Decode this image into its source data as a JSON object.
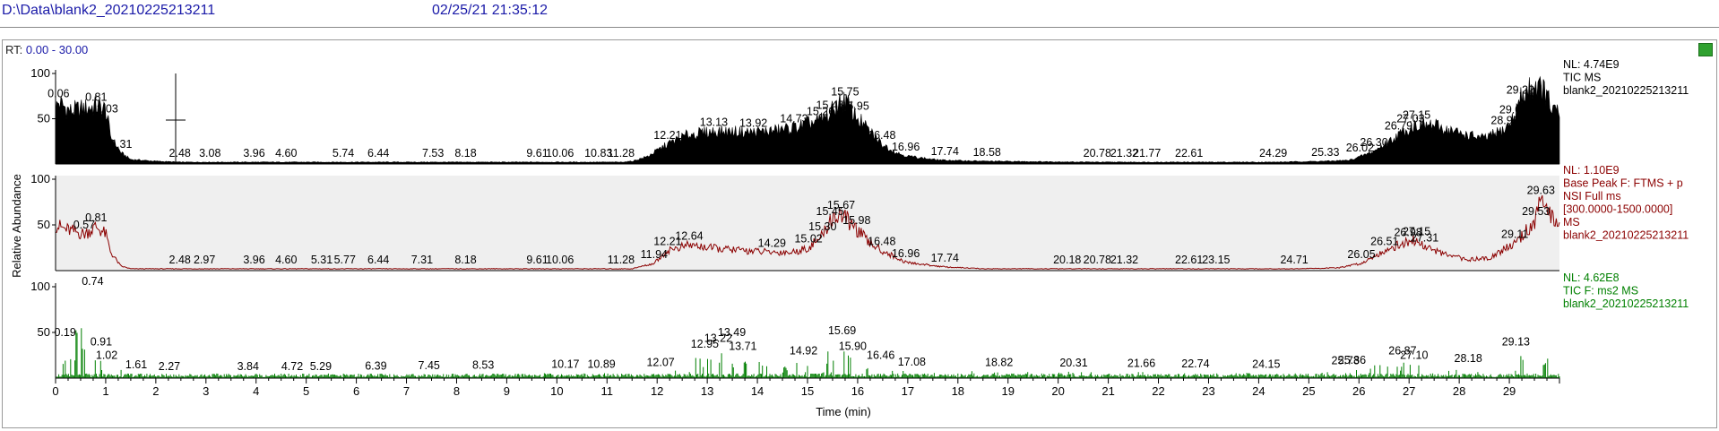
{
  "header": {
    "path": "D:\\Data\\blank2_20210225213211",
    "datetime": "02/25/21 21:35:12"
  },
  "rt_label": "RT:",
  "rt_range": "0.00 - 30.00",
  "chart_data": {
    "type": "line",
    "xlabel": "Time (min)",
    "ylabel": "Relative Abundance",
    "xlim": [
      0,
      30
    ],
    "x_ticks": [
      0,
      1,
      2,
      3,
      4,
      5,
      6,
      7,
      8,
      9,
      10,
      11,
      12,
      13,
      14,
      15,
      16,
      17,
      18,
      19,
      20,
      21,
      22,
      23,
      24,
      25,
      26,
      27,
      28,
      29
    ],
    "panels": [
      {
        "name": "tic-ms",
        "kind": "area",
        "color": "#000000",
        "fill": "#000000",
        "background": "#ffffff",
        "ylim": [
          0,
          100
        ],
        "y_ticks": [
          50,
          100
        ],
        "info": [
          "NL: 4.74E9",
          "TIC  MS",
          "blank2_20210225213211"
        ],
        "info_color": "#000000",
        "profile": [
          [
            0,
            60
          ],
          [
            0.06,
            68
          ],
          [
            0.3,
            58
          ],
          [
            0.81,
            64
          ],
          [
            1.0,
            60
          ],
          [
            1.1,
            30
          ],
          [
            1.31,
            12
          ],
          [
            1.5,
            5
          ],
          [
            2.0,
            3
          ],
          [
            2.48,
            2
          ],
          [
            3.08,
            2
          ],
          [
            5,
            2
          ],
          [
            8,
            2
          ],
          [
            11.28,
            2
          ],
          [
            11.5,
            3
          ],
          [
            11.8,
            8
          ],
          [
            12.21,
            22
          ],
          [
            12.6,
            32
          ],
          [
            13.13,
            36
          ],
          [
            13.92,
            35
          ],
          [
            14.4,
            37
          ],
          [
            14.73,
            40
          ],
          [
            15.0,
            44
          ],
          [
            15.26,
            48
          ],
          [
            15.45,
            55
          ],
          [
            15.6,
            66
          ],
          [
            15.75,
            70
          ],
          [
            15.95,
            54
          ],
          [
            16.2,
            38
          ],
          [
            16.48,
            22
          ],
          [
            16.8,
            12
          ],
          [
            16.96,
            9
          ],
          [
            17.5,
            5
          ],
          [
            17.74,
            4
          ],
          [
            18.58,
            3
          ],
          [
            20.78,
            2
          ],
          [
            21.32,
            2
          ],
          [
            22.61,
            2
          ],
          [
            24.29,
            2
          ],
          [
            25.33,
            3
          ],
          [
            25.8,
            4
          ],
          [
            26.02,
            8
          ],
          [
            26.3,
            14
          ],
          [
            26.79,
            32
          ],
          [
            27.03,
            40
          ],
          [
            27.15,
            44
          ],
          [
            27.5,
            42
          ],
          [
            28.0,
            34
          ],
          [
            28.5,
            28
          ],
          [
            28.91,
            38
          ],
          [
            29.08,
            50
          ],
          [
            29.22,
            72
          ],
          [
            29.5,
            88
          ],
          [
            29.7,
            80
          ],
          [
            29.85,
            60
          ],
          [
            29.98,
            55
          ]
        ],
        "peaks": [
          [
            0.06,
            "0.06"
          ],
          [
            0.81,
            "0.81"
          ],
          [
            1.03,
            "1.03"
          ],
          [
            1.31,
            "1.31"
          ],
          [
            2.48,
            "2.48"
          ],
          [
            3.08,
            "3.08"
          ],
          [
            3.96,
            "3.96"
          ],
          [
            4.6,
            "4.60"
          ],
          [
            5.74,
            "5.74"
          ],
          [
            6.44,
            "6.44"
          ],
          [
            7.53,
            "7.53"
          ],
          [
            8.18,
            "8.18"
          ],
          [
            9.61,
            "9.61"
          ],
          [
            10.06,
            "10.06"
          ],
          [
            10.83,
            "10.83"
          ],
          [
            11.28,
            "11.28"
          ],
          [
            12.21,
            "12.21"
          ],
          [
            13.13,
            "13.13"
          ],
          [
            13.92,
            "13.92"
          ],
          [
            14.73,
            "14.73"
          ],
          [
            15.26,
            "15.26"
          ],
          [
            15.45,
            "15.45"
          ],
          [
            15.75,
            "15.75"
          ],
          [
            15.95,
            "15.95"
          ],
          [
            16.48,
            "16.48"
          ],
          [
            16.96,
            "16.96"
          ],
          [
            17.74,
            "17.74"
          ],
          [
            18.58,
            "18.58"
          ],
          [
            20.78,
            "20.78"
          ],
          [
            21.32,
            "21.32"
          ],
          [
            21.77,
            "21.77"
          ],
          [
            22.61,
            "22.61"
          ],
          [
            24.29,
            "24.29"
          ],
          [
            25.33,
            "25.33"
          ],
          [
            26.02,
            "26.02"
          ],
          [
            26.3,
            "26.30"
          ],
          [
            26.79,
            "26.79"
          ],
          [
            27.03,
            "27.03"
          ],
          [
            27.15,
            "27.15"
          ],
          [
            28.91,
            "28.91"
          ],
          [
            29.08,
            "29.08"
          ],
          [
            29.22,
            "29.22"
          ]
        ]
      },
      {
        "name": "base-peak-ftms",
        "kind": "line",
        "color": "#8b0000",
        "background": "#efefef",
        "ylim": [
          0,
          100
        ],
        "y_ticks": [
          50,
          100
        ],
        "info": [
          "NL: 1.10E9",
          "Base Peak F: FTMS + p",
          "NSI Full ms",
          "[300.0000-1500.0000]",
          "MS",
          "blank2_20210225213211"
        ],
        "info_color": "#8b0000",
        "profile": [
          [
            0,
            50
          ],
          [
            0.2,
            45
          ],
          [
            0.57,
            40
          ],
          [
            0.81,
            48
          ],
          [
            1.0,
            40
          ],
          [
            1.1,
            20
          ],
          [
            1.3,
            5
          ],
          [
            1.5,
            2
          ],
          [
            2.48,
            2
          ],
          [
            11.5,
            2
          ],
          [
            11.94,
            8
          ],
          [
            12.21,
            22
          ],
          [
            12.64,
            28
          ],
          [
            13.2,
            24
          ],
          [
            14.29,
            20
          ],
          [
            14.7,
            20
          ],
          [
            15.02,
            25
          ],
          [
            15.3,
            38
          ],
          [
            15.45,
            55
          ],
          [
            15.67,
            62
          ],
          [
            15.98,
            45
          ],
          [
            16.2,
            32
          ],
          [
            16.48,
            22
          ],
          [
            16.96,
            9
          ],
          [
            17.74,
            4
          ],
          [
            18.5,
            2
          ],
          [
            20.18,
            2
          ],
          [
            24.71,
            2
          ],
          [
            25.6,
            3
          ],
          [
            26.05,
            8
          ],
          [
            26.51,
            22
          ],
          [
            26.98,
            32
          ],
          [
            27.15,
            33
          ],
          [
            27.31,
            26
          ],
          [
            27.8,
            16
          ],
          [
            28.2,
            12
          ],
          [
            28.6,
            14
          ],
          [
            29.11,
            30
          ],
          [
            29.53,
            55
          ],
          [
            29.63,
            78
          ],
          [
            29.8,
            60
          ],
          [
            29.98,
            55
          ]
        ],
        "peaks": [
          [
            0.57,
            "0.57"
          ],
          [
            0.81,
            "0.81"
          ],
          [
            2.48,
            "2.48"
          ],
          [
            2.97,
            "2.97"
          ],
          [
            3.96,
            "3.96"
          ],
          [
            4.6,
            "4.60"
          ],
          [
            5.31,
            "5.31"
          ],
          [
            5.77,
            "5.77"
          ],
          [
            6.44,
            "6.44"
          ],
          [
            7.31,
            "7.31"
          ],
          [
            8.18,
            "8.18"
          ],
          [
            9.61,
            "9.61"
          ],
          [
            10.06,
            "10.06"
          ],
          [
            11.28,
            "11.28"
          ],
          [
            11.94,
            "11.94"
          ],
          [
            12.21,
            "12.21"
          ],
          [
            12.64,
            "12.64"
          ],
          [
            14.29,
            "14.29"
          ],
          [
            15.02,
            "15.02"
          ],
          [
            15.3,
            "15.30"
          ],
          [
            15.45,
            "15.45"
          ],
          [
            15.67,
            "15.67"
          ],
          [
            15.98,
            "15.98"
          ],
          [
            16.48,
            "16.48"
          ],
          [
            16.96,
            "16.96"
          ],
          [
            17.74,
            "17.74"
          ],
          [
            20.18,
            "20.18"
          ],
          [
            20.78,
            "20.78"
          ],
          [
            21.32,
            "21.32"
          ],
          [
            22.61,
            "22.61"
          ],
          [
            23.15,
            "23.15"
          ],
          [
            24.71,
            "24.71"
          ],
          [
            26.05,
            "26.05"
          ],
          [
            26.51,
            "26.51"
          ],
          [
            26.98,
            "26.98"
          ],
          [
            27.15,
            "27.15"
          ],
          [
            27.31,
            "27.31"
          ],
          [
            29.11,
            "29.11"
          ],
          [
            29.53,
            "29.53"
          ],
          [
            29.63,
            "29.63"
          ]
        ]
      },
      {
        "name": "tic-ms2",
        "kind": "spikes",
        "color": "#007f00",
        "background": "#ffffff",
        "ylim": [
          0,
          100
        ],
        "y_ticks": [
          50,
          100
        ],
        "info": [
          "NL: 4.62E8",
          "TIC F: ms2  MS",
          "blank2_20210225213211"
        ],
        "info_color": "#008000",
        "profile": [
          [
            0,
            30
          ],
          [
            0.19,
            40
          ],
          [
            0.74,
            100
          ],
          [
            0.91,
            30
          ],
          [
            1.02,
            15
          ],
          [
            1.61,
            5
          ],
          [
            2.27,
            3
          ],
          [
            5,
            3
          ],
          [
            12,
            6
          ],
          [
            13.49,
            40
          ],
          [
            13.71,
            25
          ],
          [
            14.92,
            20
          ],
          [
            15.69,
            42
          ],
          [
            15.9,
            25
          ],
          [
            16.46,
            15
          ],
          [
            17.08,
            8
          ],
          [
            25,
            5
          ],
          [
            25.86,
            10
          ],
          [
            26.87,
            20
          ],
          [
            27.1,
            15
          ],
          [
            28.18,
            12
          ],
          [
            29.13,
            30
          ],
          [
            29.98,
            20
          ]
        ],
        "peaks": [
          [
            0.19,
            "0.19"
          ],
          [
            0.74,
            "0.74"
          ],
          [
            0.91,
            "0.91"
          ],
          [
            1.02,
            "1.02"
          ],
          [
            1.61,
            "1.61"
          ],
          [
            2.27,
            "2.27"
          ],
          [
            3.84,
            "3.84"
          ],
          [
            4.72,
            "4.72"
          ],
          [
            5.29,
            "5.29"
          ],
          [
            6.39,
            "6.39"
          ],
          [
            7.45,
            "7.45"
          ],
          [
            8.53,
            "8.53"
          ],
          [
            10.17,
            "10.17"
          ],
          [
            10.89,
            "10.89"
          ],
          [
            12.07,
            "12.07"
          ],
          [
            12.95,
            "12.95"
          ],
          [
            13.22,
            "13.22"
          ],
          [
            13.49,
            "13.49"
          ],
          [
            13.71,
            "13.71"
          ],
          [
            14.92,
            "14.92"
          ],
          [
            15.69,
            "15.69"
          ],
          [
            15.9,
            "15.90"
          ],
          [
            16.46,
            "16.46"
          ],
          [
            17.08,
            "17.08"
          ],
          [
            18.82,
            "18.82"
          ],
          [
            20.31,
            "20.31"
          ],
          [
            21.66,
            "21.66"
          ],
          [
            22.74,
            "22.74"
          ],
          [
            24.15,
            "24.15"
          ],
          [
            25.73,
            "25.73"
          ],
          [
            25.86,
            "25.86"
          ],
          [
            26.87,
            "26.87"
          ],
          [
            27.1,
            "27.10"
          ],
          [
            28.18,
            "28.18"
          ],
          [
            29.13,
            "29.13"
          ]
        ]
      }
    ]
  }
}
